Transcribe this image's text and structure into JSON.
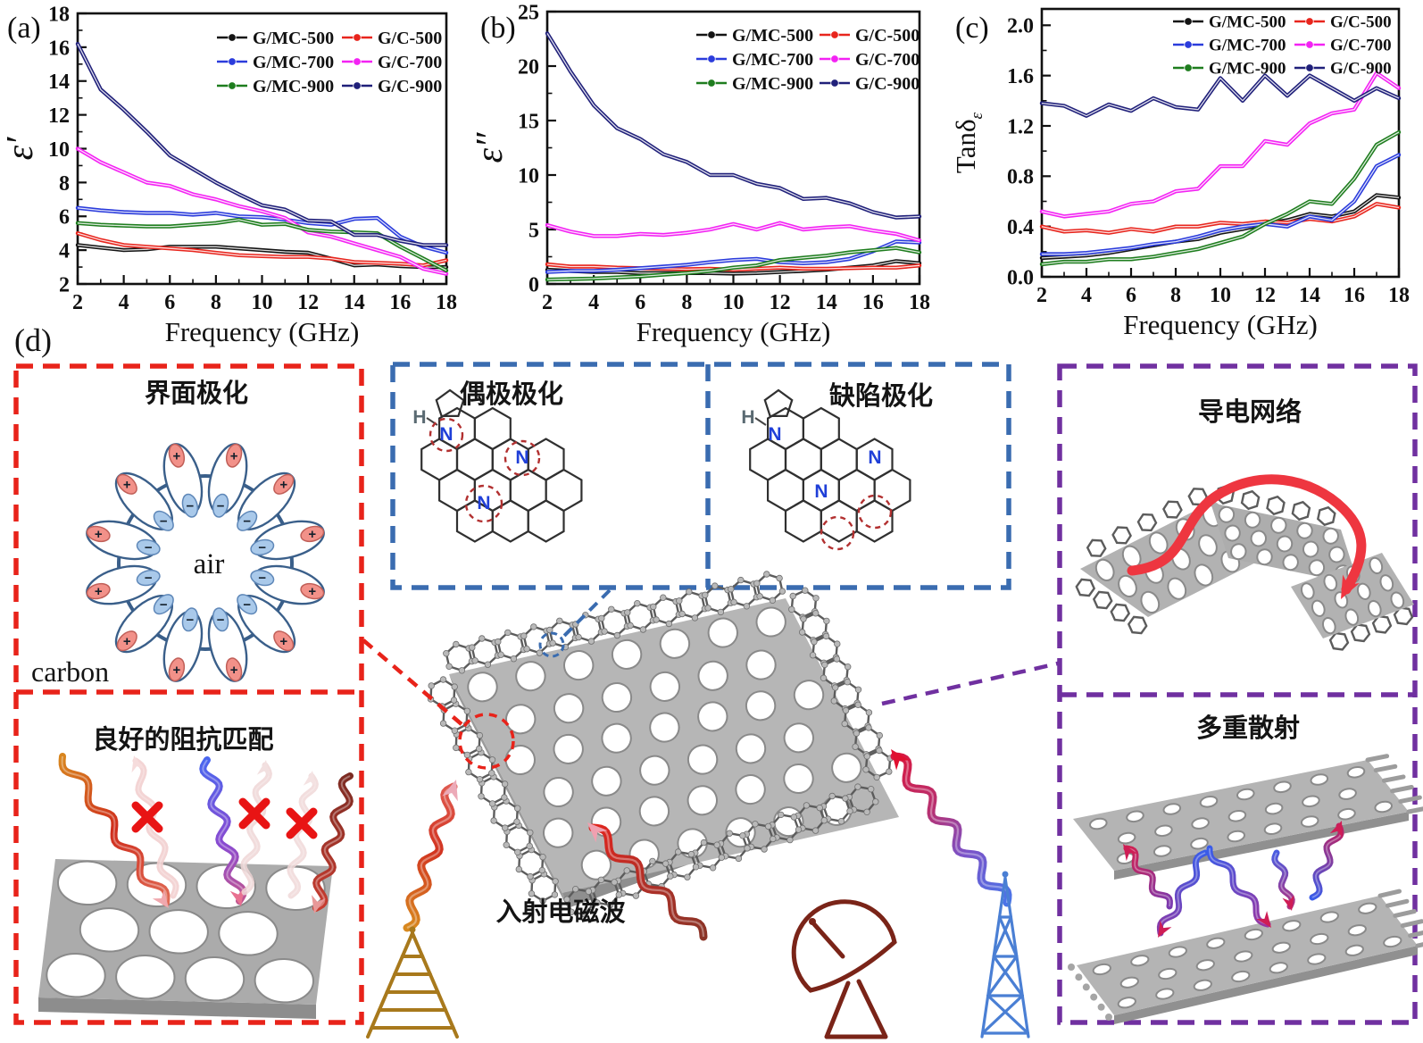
{
  "chart_data": [
    {
      "id": "a",
      "type": "line",
      "panel_label": "(a)",
      "xlabel": "Frequency (GHz)",
      "ylabel": "ε′",
      "ylabel_sub": "",
      "xlim": [
        2,
        18
      ],
      "ylim": [
        2,
        18
      ],
      "xticks": [
        2,
        4,
        6,
        8,
        10,
        12,
        14,
        16,
        18
      ],
      "yticks": [
        2,
        4,
        6,
        8,
        10,
        12,
        14,
        16,
        18
      ],
      "xminor_step": 1,
      "yminor_step": 1,
      "ydecimals": 0,
      "legend_position": "top-right-inside",
      "grid": false,
      "x": [
        2,
        3,
        4,
        5,
        6,
        7,
        8,
        9,
        10,
        11,
        12,
        13,
        14,
        15,
        16,
        17,
        18
      ],
      "series": [
        {
          "name": "G/MC-500",
          "color": "#141414",
          "values": [
            4.3,
            4.15,
            4.0,
            4.05,
            4.2,
            4.2,
            4.2,
            4.1,
            4.0,
            3.9,
            3.85,
            3.5,
            3.1,
            3.15,
            3.05,
            3.0,
            3.0
          ]
        },
        {
          "name": "G/C-500",
          "color": "#e8251d",
          "values": [
            5.0,
            4.6,
            4.3,
            4.2,
            4.1,
            4.0,
            3.85,
            3.7,
            3.65,
            3.6,
            3.6,
            3.5,
            3.3,
            3.25,
            3.2,
            3.1,
            3.4
          ]
        },
        {
          "name": "G/MC-700",
          "color": "#2b3cdc",
          "values": [
            6.5,
            6.35,
            6.25,
            6.2,
            6.2,
            6.1,
            6.2,
            6.0,
            5.95,
            5.8,
            5.6,
            5.5,
            5.85,
            5.9,
            4.8,
            4.2,
            3.85
          ]
        },
        {
          "name": "G/C-700",
          "color": "#f322f3",
          "values": [
            10.0,
            9.2,
            8.6,
            8.0,
            7.8,
            7.3,
            7.0,
            6.6,
            6.3,
            5.9,
            5.05,
            4.8,
            4.4,
            4.0,
            3.6,
            2.9,
            2.6
          ]
        },
        {
          "name": "G/MC-900",
          "color": "#1e7d1e",
          "values": [
            5.6,
            5.5,
            5.45,
            5.4,
            5.4,
            5.5,
            5.6,
            5.8,
            5.5,
            5.55,
            5.2,
            5.1,
            5.05,
            5.0,
            4.2,
            3.5,
            2.8
          ]
        },
        {
          "name": "G/C-900",
          "color": "#20207a",
          "values": [
            16.2,
            13.5,
            12.3,
            11.0,
            9.6,
            8.8,
            8.0,
            7.3,
            6.65,
            6.4,
            5.75,
            5.7,
            4.9,
            4.9,
            4.55,
            4.3,
            4.3
          ]
        }
      ]
    },
    {
      "id": "b",
      "type": "line",
      "panel_label": "(b)",
      "xlabel": "Frequency (GHz)",
      "ylabel": "ε″",
      "ylabel_sub": "",
      "xlim": [
        2,
        18
      ],
      "ylim": [
        0,
        25
      ],
      "xticks": [
        2,
        4,
        6,
        8,
        10,
        12,
        14,
        16,
        18
      ],
      "yticks": [
        0,
        5,
        10,
        15,
        20,
        25
      ],
      "xminor_step": 1,
      "yminor_step": 2.5,
      "ydecimals": 0,
      "legend_position": "top-right-inside",
      "grid": false,
      "x": [
        2,
        3,
        4,
        5,
        6,
        7,
        8,
        9,
        10,
        11,
        12,
        13,
        14,
        15,
        16,
        17,
        18
      ],
      "series": [
        {
          "name": "G/MC-500",
          "color": "#141414",
          "values": [
            1.3,
            1.2,
            1.1,
            1.1,
            1.0,
            1.0,
            1.0,
            1.0,
            0.95,
            1.0,
            1.1,
            1.2,
            1.3,
            1.5,
            1.7,
            2.1,
            1.9
          ]
        },
        {
          "name": "G/C-500",
          "color": "#e8251d",
          "values": [
            1.8,
            1.6,
            1.6,
            1.5,
            1.45,
            1.4,
            1.35,
            1.4,
            1.3,
            1.4,
            1.5,
            1.4,
            1.4,
            1.45,
            1.5,
            1.5,
            1.7
          ]
        },
        {
          "name": "G/MC-700",
          "color": "#2b3cdc",
          "values": [
            1.1,
            1.2,
            1.2,
            1.3,
            1.45,
            1.6,
            1.75,
            2.0,
            2.2,
            2.3,
            2.0,
            1.9,
            2.0,
            2.3,
            3.0,
            3.9,
            3.8
          ]
        },
        {
          "name": "G/C-700",
          "color": "#f322f3",
          "values": [
            5.4,
            4.8,
            4.4,
            4.4,
            4.6,
            4.5,
            4.7,
            5.0,
            5.5,
            5.0,
            5.6,
            5.0,
            5.2,
            5.3,
            4.9,
            4.6,
            4.0
          ]
        },
        {
          "name": "G/MC-900",
          "color": "#1e7d1e",
          "values": [
            0.4,
            0.45,
            0.5,
            0.6,
            0.7,
            0.85,
            1.0,
            1.2,
            1.5,
            1.7,
            2.2,
            2.4,
            2.6,
            2.9,
            3.1,
            3.3,
            2.9
          ]
        },
        {
          "name": "G/C-900",
          "color": "#20207a",
          "values": [
            23.0,
            19.5,
            16.4,
            14.3,
            13.3,
            11.9,
            11.2,
            10.0,
            10.0,
            9.2,
            8.8,
            7.8,
            7.9,
            7.4,
            6.6,
            6.1,
            6.2
          ]
        }
      ]
    },
    {
      "id": "c",
      "type": "line",
      "panel_label": "(c)",
      "xlabel": "Frequency (GHz)",
      "ylabel": "Tanδ",
      "ylabel_sub": "ε",
      "xlim": [
        2,
        18
      ],
      "ylim": [
        0,
        2.13
      ],
      "xticks": [
        2,
        4,
        6,
        8,
        10,
        12,
        14,
        16,
        18
      ],
      "yticks": [
        0.0,
        0.4,
        0.8,
        1.2,
        1.6,
        2.0
      ],
      "xminor_step": 1,
      "yminor_step": 0.2,
      "ydecimals": 1,
      "legend_position": "top-right-inside",
      "grid": false,
      "x": [
        2,
        3,
        4,
        5,
        6,
        7,
        8,
        9,
        10,
        11,
        12,
        13,
        14,
        15,
        16,
        17,
        18
      ],
      "series": [
        {
          "name": "G/MC-500",
          "color": "#141414",
          "values": [
            0.15,
            0.16,
            0.17,
            0.19,
            0.22,
            0.25,
            0.28,
            0.3,
            0.35,
            0.38,
            0.42,
            0.45,
            0.5,
            0.48,
            0.52,
            0.65,
            0.63
          ]
        },
        {
          "name": "G/C-500",
          "color": "#e8251d",
          "values": [
            0.4,
            0.36,
            0.37,
            0.35,
            0.38,
            0.36,
            0.4,
            0.4,
            0.43,
            0.42,
            0.44,
            0.43,
            0.46,
            0.44,
            0.48,
            0.58,
            0.55
          ]
        },
        {
          "name": "G/MC-700",
          "color": "#2b3cdc",
          "values": [
            0.18,
            0.18,
            0.19,
            0.21,
            0.23,
            0.26,
            0.28,
            0.32,
            0.37,
            0.4,
            0.42,
            0.4,
            0.48,
            0.45,
            0.6,
            0.88,
            0.97
          ]
        },
        {
          "name": "G/C-700",
          "color": "#f322f3",
          "values": [
            0.52,
            0.48,
            0.5,
            0.52,
            0.58,
            0.6,
            0.68,
            0.7,
            0.88,
            0.88,
            1.08,
            1.05,
            1.22,
            1.3,
            1.33,
            1.62,
            1.5
          ]
        },
        {
          "name": "G/MC-900",
          "color": "#1e7d1e",
          "values": [
            0.1,
            0.12,
            0.12,
            0.14,
            0.14,
            0.16,
            0.19,
            0.22,
            0.27,
            0.32,
            0.42,
            0.5,
            0.6,
            0.58,
            0.78,
            1.05,
            1.15
          ]
        },
        {
          "name": "G/C-900",
          "color": "#20207a",
          "values": [
            1.38,
            1.36,
            1.28,
            1.37,
            1.32,
            1.42,
            1.35,
            1.33,
            1.58,
            1.4,
            1.6,
            1.44,
            1.6,
            1.5,
            1.4,
            1.5,
            1.42
          ]
        }
      ]
    }
  ],
  "d": {
    "label": "(d)",
    "interface_box": {
      "title": "界面极化",
      "air_label": "air",
      "carbon_label": "carbon",
      "plus": "+",
      "minus": "−",
      "border_color": "#e8231a"
    },
    "impedance_box": {
      "title": "良好的阻抗匹配",
      "border_color": "#e8231a"
    },
    "dipole_box": {
      "title": "偶极极化",
      "border_color": "#3a6cb0"
    },
    "defect_box": {
      "title": "缺陷极化",
      "border_color": "#3a6cb0"
    },
    "network_box": {
      "title": "导电网络",
      "border_color": "#7030a0"
    },
    "scatter_box": {
      "title": "多重散射",
      "border_color": "#7030a0"
    },
    "incident_wave_label": "入射电磁波",
    "molecule_labels": {
      "h": "H",
      "n": "N"
    }
  }
}
